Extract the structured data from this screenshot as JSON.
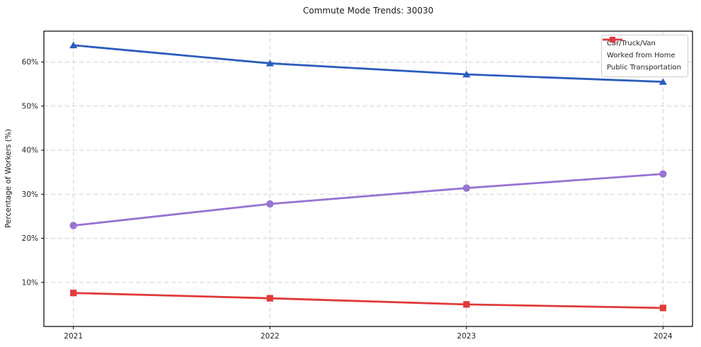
{
  "title": "Commute Mode Trends: 30030",
  "chart_data": {
    "type": "line",
    "title": "Commute Mode Trends: 30030",
    "xlabel": "",
    "ylabel": "Percentage of Workers (%)",
    "x": [
      "2021",
      "2022",
      "2023",
      "2024"
    ],
    "series": [
      {
        "name": "Car/Truck/Van",
        "values": [
          63.8,
          59.7,
          57.2,
          55.5
        ],
        "color": "#2b5dbd",
        "marker": "triangle-up"
      },
      {
        "name": "Worked from Home",
        "values": [
          22.9,
          27.8,
          31.4,
          34.6
        ],
        "color": "#9873d2",
        "marker": "circle"
      },
      {
        "name": "Public Transportation",
        "values": [
          7.6,
          6.4,
          5.0,
          4.2
        ],
        "color": "#e03a3a",
        "marker": "square"
      }
    ],
    "ylim": [
      0,
      67
    ],
    "yticks": [
      10,
      20,
      30,
      40,
      50,
      60
    ],
    "ytick_suffix": "%",
    "grid": true,
    "grid_style": "dashed",
    "legend_position": "upper right",
    "colors": {
      "grid": "#d2d2d2",
      "axis_border": "#000000",
      "tick_text": "#262626",
      "background": "#ffffff"
    }
  }
}
